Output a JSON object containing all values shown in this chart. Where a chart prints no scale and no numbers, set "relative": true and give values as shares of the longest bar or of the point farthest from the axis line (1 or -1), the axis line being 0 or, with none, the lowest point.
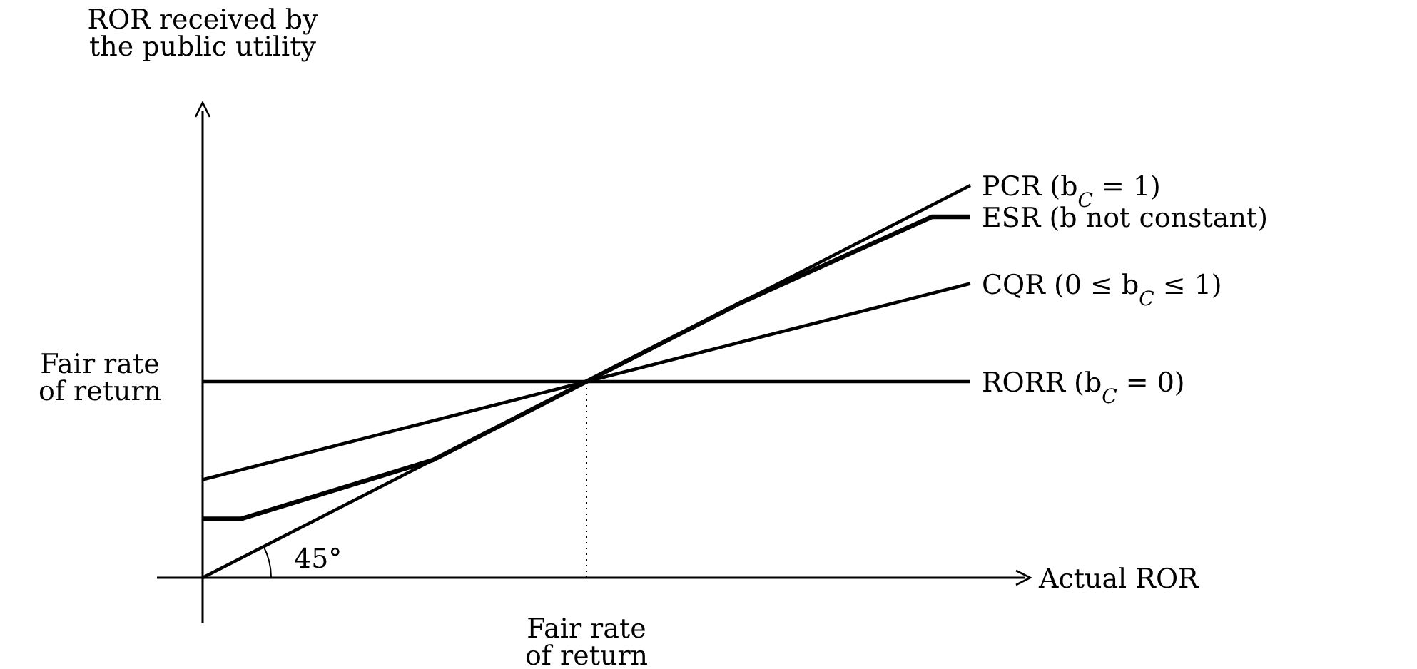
{
  "chart_data": {
    "type": "line",
    "relative": true,
    "xlabel": "Actual ROR",
    "ylabel": "ROR received by\nthe public utility",
    "marker": "none",
    "line_style": "solid",
    "categories": [
      null,
      null,
      null,
      null,
      null,
      null,
      null,
      null,
      null,
      null,
      null,
      null,
      null,
      null,
      null,
      null,
      null,
      null,
      null,
      null,
      null
    ],
    "series": [
      {
        "name": "PCR (b$_{C}$ = 1)",
        "color": "#000000",
        "values": [
          0,
          0.05,
          0.1,
          0.15,
          0.2,
          0.25,
          0.3,
          0.35,
          0.4,
          0.45,
          0.5,
          0.55,
          0.6,
          0.65,
          0.7,
          0.75,
          0.8,
          0.85,
          0.9,
          0.95,
          1
        ]
      },
      {
        "name": "ESR (b not constant)",
        "color": "#000000",
        "values": [
          0.15,
          0.15,
          0.18,
          0.21,
          0.24,
          0.27,
          0.3,
          0.35,
          0.4,
          0.45,
          0.5,
          0.55,
          0.6,
          0.65,
          0.7,
          0.744,
          0.788,
          0.832,
          0.876,
          0.92,
          0.92
        ]
      },
      {
        "name": "CQR (0 ≤ b$_{C}$ ≤ 1)",
        "color": "#000000",
        "values": [
          0.25,
          0.275,
          0.3,
          0.325,
          0.35,
          0.375,
          0.4,
          0.425,
          0.45,
          0.475,
          0.5,
          0.525,
          0.55,
          0.575,
          0.6,
          0.625,
          0.65,
          0.675,
          0.7,
          0.725,
          0.75
        ]
      },
      {
        "name": "RORR (b$_{C}$ = 0)",
        "color": "#000000",
        "values": [
          0.5,
          0.5,
          0.5,
          0.5,
          0.5,
          0.5,
          0.5,
          0.5,
          0.5,
          0.5,
          0.5,
          0.5,
          0.5,
          0.5,
          0.5,
          0.5,
          0.5,
          0.5,
          0.5,
          0.5,
          0.5
        ]
      }
    ],
    "annotations": [
      "Fair rate\nof return",
      "Fair rate\nof return",
      "45°"
    ]
  }
}
